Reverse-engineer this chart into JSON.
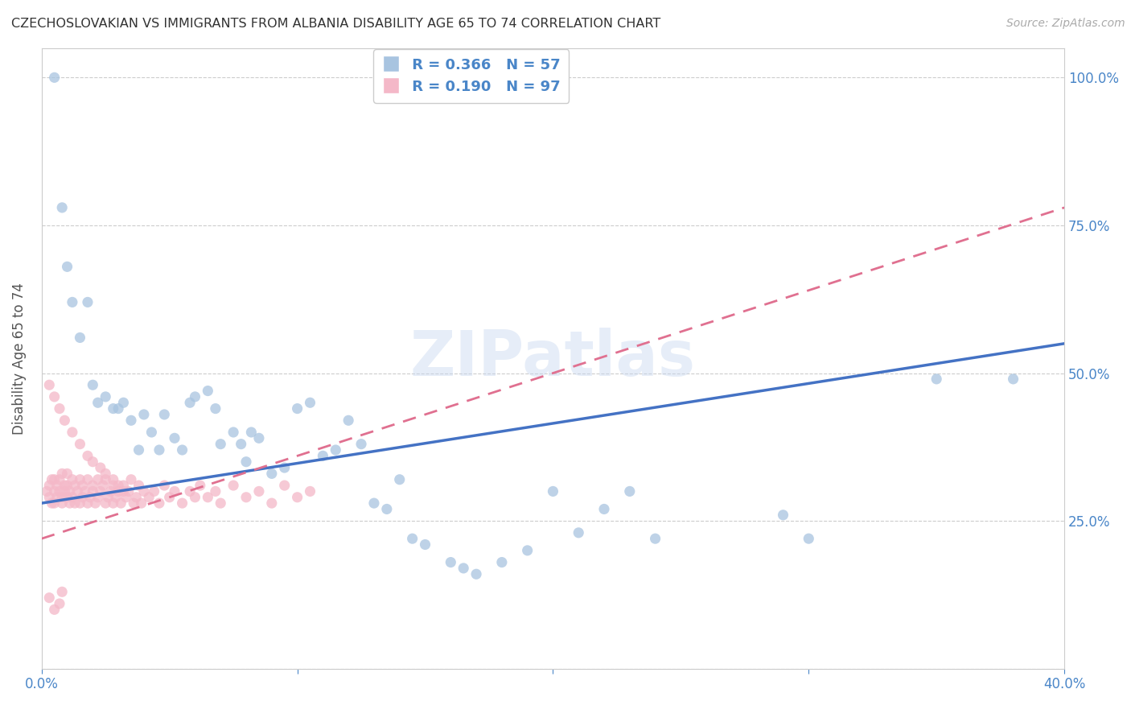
{
  "title": "CZECHOSLOVAKIAN VS IMMIGRANTS FROM ALBANIA DISABILITY AGE 65 TO 74 CORRELATION CHART",
  "source": "Source: ZipAtlas.com",
  "ylabel": "Disability Age 65 to 74",
  "xlim": [
    0.0,
    0.4
  ],
  "ylim": [
    0.0,
    1.05
  ],
  "yticks": [
    0.0,
    0.25,
    0.5,
    0.75,
    1.0
  ],
  "ytick_labels": [
    "",
    "25.0%",
    "50.0%",
    "75.0%",
    "100.0%"
  ],
  "xticks": [
    0.0,
    0.1,
    0.2,
    0.3,
    0.4
  ],
  "xtick_labels": [
    "0.0%",
    "",
    "",
    "",
    "40.0%"
  ],
  "legend_R1": "R = 0.366",
  "legend_N1": "N = 57",
  "legend_R2": "R = 0.190",
  "legend_N2": "N = 97",
  "blue_color": "#a8c4e0",
  "pink_color": "#f4b8c8",
  "blue_line_color": "#4472c4",
  "pink_line_color": "#e07090",
  "axis_color": "#4a86c8",
  "watermark": "ZIPatlas",
  "blue_x": [
    0.005,
    0.008,
    0.01,
    0.012,
    0.015,
    0.018,
    0.02,
    0.022,
    0.025,
    0.028,
    0.03,
    0.032,
    0.035,
    0.038,
    0.04,
    0.043,
    0.046,
    0.048,
    0.052,
    0.055,
    0.058,
    0.06,
    0.065,
    0.068,
    0.07,
    0.075,
    0.078,
    0.08,
    0.082,
    0.085,
    0.09,
    0.095,
    0.1,
    0.105,
    0.11,
    0.115,
    0.12,
    0.125,
    0.13,
    0.135,
    0.14,
    0.145,
    0.15,
    0.16,
    0.165,
    0.17,
    0.18,
    0.19,
    0.2,
    0.21,
    0.22,
    0.23,
    0.24,
    0.29,
    0.3,
    0.35,
    0.38
  ],
  "blue_y": [
    1.0,
    0.78,
    0.68,
    0.62,
    0.56,
    0.62,
    0.48,
    0.45,
    0.46,
    0.44,
    0.44,
    0.45,
    0.42,
    0.37,
    0.43,
    0.4,
    0.37,
    0.43,
    0.39,
    0.37,
    0.45,
    0.46,
    0.47,
    0.44,
    0.38,
    0.4,
    0.38,
    0.35,
    0.4,
    0.39,
    0.33,
    0.34,
    0.44,
    0.45,
    0.36,
    0.37,
    0.42,
    0.38,
    0.28,
    0.27,
    0.32,
    0.22,
    0.21,
    0.18,
    0.17,
    0.16,
    0.18,
    0.2,
    0.3,
    0.23,
    0.27,
    0.3,
    0.22,
    0.26,
    0.22,
    0.49,
    0.49
  ],
  "pink_x": [
    0.002,
    0.003,
    0.003,
    0.004,
    0.004,
    0.005,
    0.005,
    0.005,
    0.006,
    0.006,
    0.007,
    0.007,
    0.008,
    0.008,
    0.008,
    0.009,
    0.009,
    0.01,
    0.01,
    0.01,
    0.011,
    0.011,
    0.012,
    0.012,
    0.013,
    0.013,
    0.014,
    0.015,
    0.015,
    0.016,
    0.016,
    0.017,
    0.018,
    0.018,
    0.019,
    0.02,
    0.02,
    0.021,
    0.022,
    0.022,
    0.023,
    0.024,
    0.025,
    0.025,
    0.026,
    0.027,
    0.028,
    0.028,
    0.029,
    0.03,
    0.031,
    0.032,
    0.033,
    0.034,
    0.035,
    0.036,
    0.037,
    0.038,
    0.039,
    0.04,
    0.042,
    0.044,
    0.046,
    0.048,
    0.05,
    0.052,
    0.055,
    0.058,
    0.06,
    0.062,
    0.065,
    0.068,
    0.07,
    0.075,
    0.08,
    0.085,
    0.09,
    0.095,
    0.1,
    0.105,
    0.003,
    0.005,
    0.007,
    0.009,
    0.012,
    0.015,
    0.018,
    0.02,
    0.023,
    0.025,
    0.028,
    0.03,
    0.032,
    0.003,
    0.005,
    0.007,
    0.008
  ],
  "pink_y": [
    0.3,
    0.29,
    0.31,
    0.32,
    0.28,
    0.3,
    0.28,
    0.32,
    0.31,
    0.29,
    0.3,
    0.32,
    0.29,
    0.33,
    0.28,
    0.31,
    0.3,
    0.29,
    0.31,
    0.33,
    0.3,
    0.28,
    0.32,
    0.29,
    0.31,
    0.28,
    0.3,
    0.32,
    0.28,
    0.31,
    0.29,
    0.3,
    0.32,
    0.28,
    0.29,
    0.31,
    0.3,
    0.28,
    0.32,
    0.29,
    0.3,
    0.31,
    0.32,
    0.28,
    0.29,
    0.3,
    0.31,
    0.28,
    0.29,
    0.3,
    0.28,
    0.31,
    0.29,
    0.3,
    0.32,
    0.28,
    0.29,
    0.31,
    0.28,
    0.3,
    0.29,
    0.3,
    0.28,
    0.31,
    0.29,
    0.3,
    0.28,
    0.3,
    0.29,
    0.31,
    0.29,
    0.3,
    0.28,
    0.31,
    0.29,
    0.3,
    0.28,
    0.31,
    0.29,
    0.3,
    0.48,
    0.46,
    0.44,
    0.42,
    0.4,
    0.38,
    0.36,
    0.35,
    0.34,
    0.33,
    0.32,
    0.31,
    0.3,
    0.12,
    0.1,
    0.11,
    0.13
  ],
  "blue_trend_x": [
    0.0,
    0.4
  ],
  "blue_trend_y": [
    0.28,
    0.55
  ],
  "pink_trend_x": [
    0.0,
    0.4
  ],
  "pink_trend_y": [
    0.22,
    0.78
  ]
}
